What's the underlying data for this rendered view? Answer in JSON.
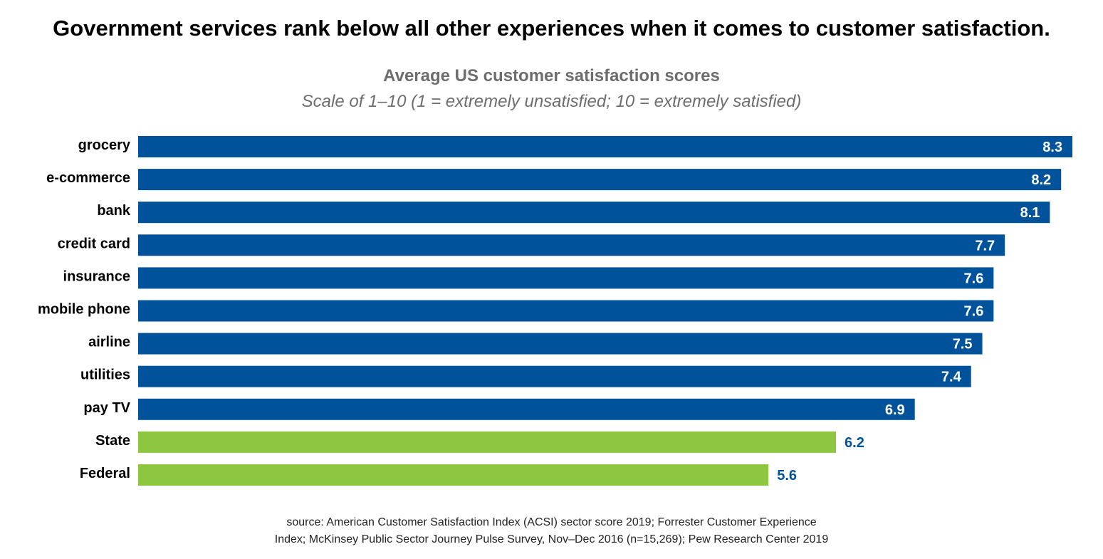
{
  "chart_data": {
    "type": "bar",
    "orientation": "horizontal",
    "title": "Government services rank below all other experiences when it comes to customer satisfaction.",
    "subtitle": "Average US customer satisfaction scores",
    "subtitle_note": "Scale of 1–10 (1 = extremely unsatisfied; 10 = extremely satisfied)",
    "categories": [
      "grocery",
      "e-commerce",
      "bank",
      "credit card",
      "insurance",
      "mobile phone",
      "airline",
      "utilities",
      "pay TV",
      "State",
      "Federal"
    ],
    "values": [
      8.3,
      8.2,
      8.1,
      7.7,
      7.6,
      7.6,
      7.5,
      7.4,
      6.9,
      6.2,
      5.6
    ],
    "value_labels": [
      "8.3",
      "8.2",
      "8.1",
      "7.7",
      "7.6",
      "7.6",
      "7.5",
      "7.4",
      "6.9",
      "6.2",
      "5.6"
    ],
    "groups": [
      "private",
      "private",
      "private",
      "private",
      "private",
      "private",
      "private",
      "private",
      "private",
      "government",
      "government"
    ],
    "colors": {
      "private": "#00539B",
      "government": "#8DC63F",
      "label_inside": "#ffffff",
      "label_outside": "#00539B"
    },
    "xlim": [
      0,
      8.3
    ],
    "grid": false,
    "axes_visible": false,
    "legend": "none",
    "source_lines": [
      "source: American Customer Satisfaction Index (ACSI) sector score 2019; Forrester Customer Experience",
      "Index; McKinsey Public Sector Journey Pulse Survey, Nov–Dec 2016 (n=15,269); Pew Research Center 2019"
    ]
  }
}
